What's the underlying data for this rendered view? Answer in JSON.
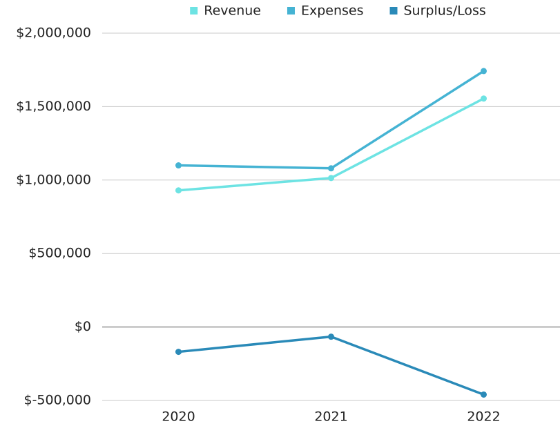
{
  "chart_data": {
    "type": "line",
    "categories": [
      "2020",
      "2021",
      "2022"
    ],
    "series": [
      {
        "name": "Revenue",
        "color": "#6de3e3",
        "values": [
          930000,
          1014000,
          1555000
        ]
      },
      {
        "name": "Expenses",
        "color": "#45b3d3",
        "values": [
          1100000,
          1080000,
          1742000
        ]
      },
      {
        "name": "Surplus/Loss",
        "color": "#2a8ab8",
        "values": [
          -169000,
          -66000,
          -460000
        ]
      }
    ],
    "ylim": [
      -500000,
      2000000
    ],
    "yticks": [
      {
        "value": -500000,
        "label": "$-500,000"
      },
      {
        "value": 0,
        "label": "$0"
      },
      {
        "value": 500000,
        "label": "$500,000"
      },
      {
        "value": 1000000,
        "label": "$1,000,000"
      },
      {
        "value": 1500000,
        "label": "$1,500,000"
      },
      {
        "value": 2000000,
        "label": "$2,000,000"
      }
    ],
    "grid": true,
    "legend": "top"
  }
}
